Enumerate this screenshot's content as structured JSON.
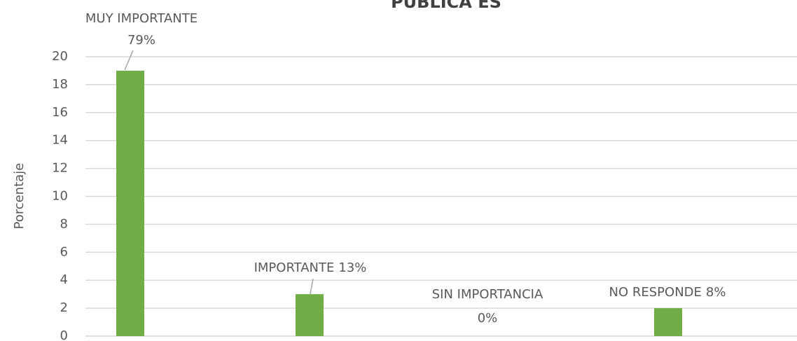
{
  "chart_data": {
    "type": "bar",
    "title": "PUBLICA ES",
    "y_label": "Porcentaje",
    "categories": [
      "MUY IMPORTANTE",
      "IMPORTANTE",
      "SIN IMPORTANCIA",
      "NO RESPONDE"
    ],
    "values": [
      19,
      3,
      0,
      2
    ],
    "percent_labels": [
      "79%",
      "13%",
      "0%",
      "8%"
    ],
    "color": "#70ad47",
    "ylim": [
      0,
      20
    ],
    "yticks": [
      0,
      2,
      4,
      6,
      8,
      10,
      12,
      14,
      16,
      18,
      20
    ],
    "grid": true
  }
}
